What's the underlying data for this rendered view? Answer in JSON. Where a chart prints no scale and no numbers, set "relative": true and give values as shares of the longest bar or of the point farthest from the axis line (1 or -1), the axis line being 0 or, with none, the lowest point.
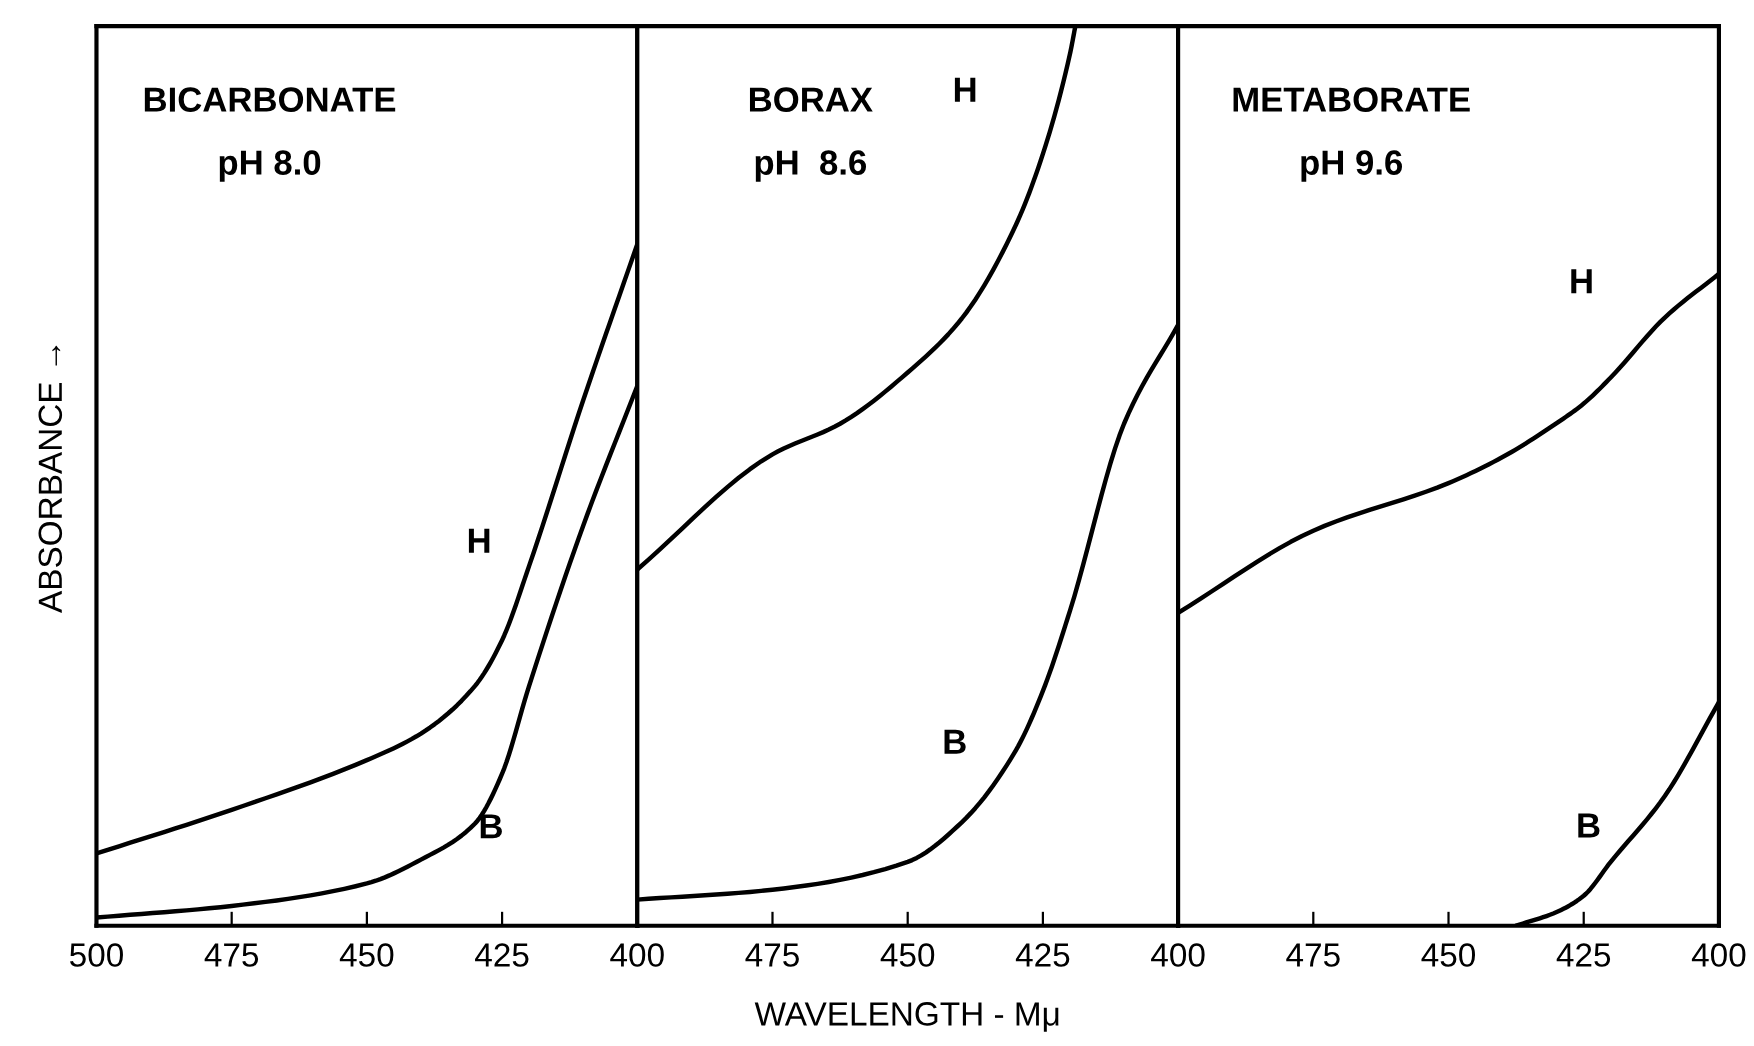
{
  "chart_data": [
    {
      "type": "line",
      "title": "BICARBONATE",
      "subtitle": "pH 8.0",
      "ylabel": "ABSORBANCE →",
      "relative": true,
      "xlim": [
        500,
        400
      ],
      "xticks": [
        500,
        475,
        450,
        425,
        400
      ],
      "tick_labels": "x",
      "grid": false,
      "series": [
        {
          "name": "H",
          "color": "#000000",
          "x": [
            500,
            475,
            450,
            440,
            430,
            425,
            420,
            410,
            400
          ],
          "values": [
            0.106,
            0.17,
            0.243,
            0.282,
            0.352,
            0.419,
            0.528,
            0.771,
            1.0
          ]
        },
        {
          "name": "B",
          "color": "#000000",
          "x": [
            500,
            475,
            450,
            440,
            430,
            425,
            420,
            410,
            400
          ],
          "values": [
            0.012,
            0.029,
            0.062,
            0.097,
            0.15,
            0.223,
            0.352,
            0.587,
            0.792
          ]
        }
      ],
      "legend": false
    },
    {
      "type": "line",
      "title": "BORAX",
      "subtitle": "pH  8.6",
      "xlabel": "WAVELENGTH - Mμ",
      "relative": true,
      "xlim": [
        500,
        400
      ],
      "xticks": [
        {
          "value": 500,
          "label": null
        },
        475,
        450,
        425,
        400
      ],
      "tick_labels": "x",
      "grid": false,
      "series": [
        {
          "name": "H",
          "color": "#000000",
          "x": [
            500,
            475,
            462.5,
            450,
            440,
            430,
            425,
            420,
            419
          ],
          "values": [
            0.396,
            0.524,
            0.558,
            0.615,
            0.675,
            0.779,
            0.858,
            0.969,
            1.0
          ]
        },
        {
          "name": "B",
          "color": "#000000",
          "x": [
            500,
            475,
            450,
            440,
            430,
            425,
            420,
            410,
            400
          ],
          "values": [
            0.029,
            0.04,
            0.071,
            0.115,
            0.195,
            0.261,
            0.35,
            0.558,
            0.668
          ]
        }
      ],
      "legend": false
    },
    {
      "type": "line",
      "title": "METABORATE",
      "subtitle": "pH 9.6",
      "relative": true,
      "xlim": [
        500,
        400
      ],
      "xticks": [
        {
          "value": 500,
          "label": null
        },
        475,
        450,
        425,
        400
      ],
      "tick_labels": "x",
      "grid": false,
      "series": [
        {
          "name": "H",
          "color": "#000000",
          "x": [
            500,
            475,
            450,
            440,
            430,
            425,
            420,
            410,
            400
          ],
          "values": [
            0.48,
            0.606,
            0.679,
            0.719,
            0.771,
            0.801,
            0.841,
            0.933,
            1.0
          ]
        },
        {
          "name": "B",
          "color": "#000000",
          "x": [
            437.5,
            430,
            425,
            420,
            410,
            400
          ],
          "values": [
            0.0,
            0.021,
            0.046,
            0.098,
            0.199,
            0.343
          ]
        }
      ],
      "legend": false
    }
  ]
}
